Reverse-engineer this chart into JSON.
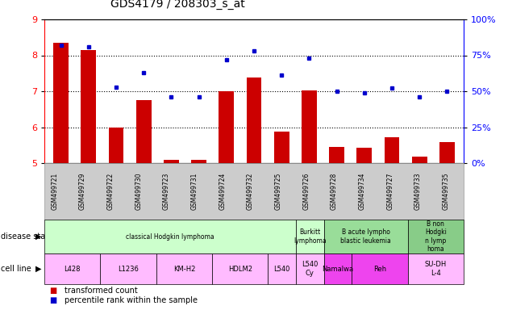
{
  "title": "GDS4179 / 208303_s_at",
  "samples": [
    "GSM499721",
    "GSM499729",
    "GSM499722",
    "GSM499730",
    "GSM499723",
    "GSM499731",
    "GSM499724",
    "GSM499732",
    "GSM499725",
    "GSM499726",
    "GSM499728",
    "GSM499734",
    "GSM499727",
    "GSM499733",
    "GSM499735"
  ],
  "bar_values": [
    8.35,
    8.15,
    6.0,
    6.75,
    5.08,
    5.08,
    7.0,
    7.38,
    5.88,
    7.02,
    5.45,
    5.42,
    5.73,
    5.18,
    5.58
  ],
  "dot_values": [
    82,
    81,
    53,
    63,
    46,
    46,
    72,
    78,
    61,
    73,
    50,
    49,
    52,
    46,
    50
  ],
  "ylim_left": [
    5,
    9
  ],
  "ylim_right": [
    0,
    100
  ],
  "bar_color": "#cc0000",
  "dot_color": "#0000cc",
  "disease_state_groups": [
    {
      "label": "classical Hodgkin lymphoma",
      "start": 0,
      "end": 9,
      "color": "#ccffcc"
    },
    {
      "label": "Burkitt\nlymphoma",
      "start": 9,
      "end": 10,
      "color": "#ccffcc"
    },
    {
      "label": "B acute lympho\nblastic leukemia",
      "start": 10,
      "end": 13,
      "color": "#99dd99"
    },
    {
      "label": "B non\nHodgki\nn lymp\nhoma",
      "start": 13,
      "end": 15,
      "color": "#88cc88"
    }
  ],
  "cell_line_groups": [
    {
      "label": "L428",
      "start": 0,
      "end": 2,
      "color": "#ffbbff"
    },
    {
      "label": "L1236",
      "start": 2,
      "end": 4,
      "color": "#ffbbff"
    },
    {
      "label": "KM-H2",
      "start": 4,
      "end": 6,
      "color": "#ffbbff"
    },
    {
      "label": "HDLM2",
      "start": 6,
      "end": 8,
      "color": "#ffbbff"
    },
    {
      "label": "L540",
      "start": 8,
      "end": 9,
      "color": "#ffbbff"
    },
    {
      "label": "L540\nCy",
      "start": 9,
      "end": 10,
      "color": "#ffbbff"
    },
    {
      "label": "Namalwa",
      "start": 10,
      "end": 11,
      "color": "#ee44ee"
    },
    {
      "label": "Reh",
      "start": 11,
      "end": 13,
      "color": "#ee44ee"
    },
    {
      "label": "SU-DH\nL-4",
      "start": 13,
      "end": 15,
      "color": "#ffbbff"
    }
  ],
  "left_yticks": [
    5,
    6,
    7,
    8,
    9
  ],
  "right_yticks": [
    0,
    25,
    50,
    75,
    100
  ],
  "right_yticklabels": [
    "0%",
    "25%",
    "50%",
    "75%",
    "100%"
  ],
  "legend_items": [
    {
      "label": "transformed count",
      "color": "#cc0000"
    },
    {
      "label": "percentile rank within the sample",
      "color": "#0000cc"
    }
  ],
  "sample_bg_color": "#cccccc",
  "grid_vals": [
    6,
    7,
    8
  ]
}
